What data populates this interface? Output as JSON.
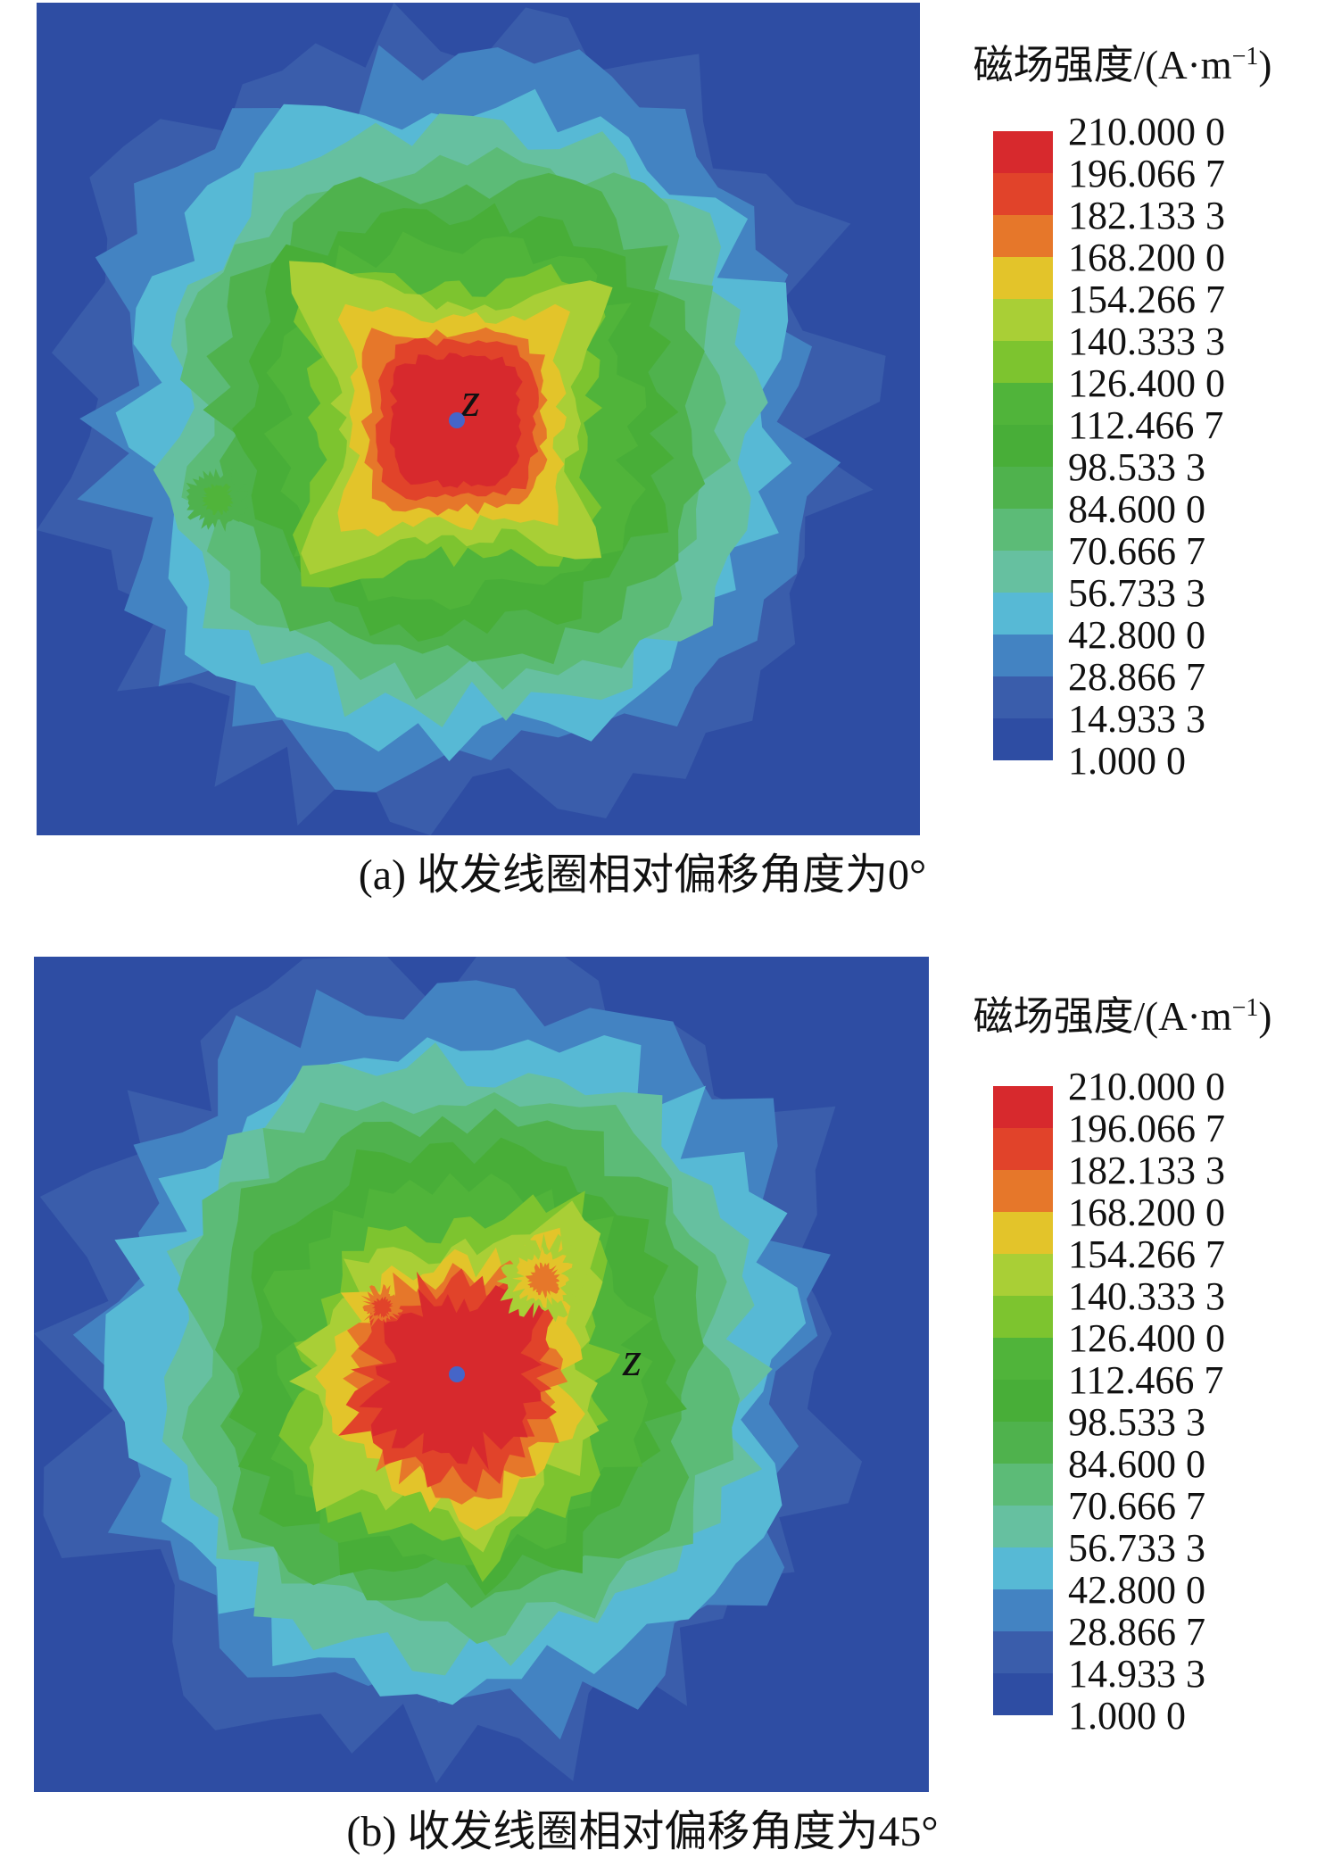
{
  "page": {
    "background": "#ffffff"
  },
  "legend": {
    "title_prefix": "磁场强度/(A·m",
    "title_sup": "−1",
    "title_suffix": ")",
    "values": [
      "210.000 0",
      "196.066 7",
      "182.133 3",
      "168.200 0",
      "154.266 7",
      "140.333 3",
      "126.400 0",
      "112.466 7",
      "98.533 3",
      "84.600 0",
      "70.666 7",
      "56.733 3",
      "42.800 0",
      "28.866 7",
      "14.933 3",
      "1.000 0"
    ],
    "colors": [
      "#d7292d",
      "#e1432a",
      "#e6772a",
      "#e3c42a",
      "#a9cf36",
      "#7dc42f",
      "#50b43a",
      "#48ae38",
      "#4fb24d",
      "#5cbb77",
      "#66c0a0",
      "#57b9d5",
      "#4383c2",
      "#3a5dab",
      "#2e4da3"
    ]
  },
  "markers": {
    "dot_color": "#4565c8"
  },
  "chart_data": [
    {
      "type": "contour",
      "caption": "(a) 收发线圈相对偏移角度为0°",
      "colorbar_title": "磁场强度/(A·m⁻¹)",
      "unit": "A·m⁻¹",
      "levels_high_to_low": [
        210.0,
        196.0667,
        182.1333,
        168.2,
        154.2667,
        140.3333,
        126.4,
        112.4667,
        98.5333,
        84.6,
        70.6667,
        56.7333,
        42.8,
        28.8667,
        14.9333,
        1.0
      ],
      "palette_high_to_low": [
        "#d7292d",
        "#e1432a",
        "#e6772a",
        "#e3c42a",
        "#a9cf36",
        "#7dc42f",
        "#50b43a",
        "#48ae38",
        "#4fb24d",
        "#5cbb77",
        "#66c0a0",
        "#57b9d5",
        "#4383c2",
        "#3a5dab",
        "#2e4da3"
      ],
      "peak_marker": {
        "label": "z",
        "relative_x": 0.476,
        "relative_y": 0.5
      },
      "marker_label_relative": {
        "x": 0.49,
        "y": 0.475
      },
      "peak_band": [
        196.0667,
        210.0
      ],
      "background_band": [
        1.0,
        14.9333
      ]
    },
    {
      "type": "contour",
      "caption": "(b) 收发线圈相对偏移角度为45°",
      "colorbar_title": "磁场强度/(A·m⁻¹)",
      "unit": "A·m⁻¹",
      "levels_high_to_low": [
        210.0,
        196.0667,
        182.1333,
        168.2,
        154.2667,
        140.3333,
        126.4,
        112.4667,
        98.5333,
        84.6,
        70.6667,
        56.7333,
        42.8,
        28.8667,
        14.9333,
        1.0
      ],
      "palette_high_to_low": [
        "#d7292d",
        "#e1432a",
        "#e6772a",
        "#e3c42a",
        "#a9cf36",
        "#7dc42f",
        "#50b43a",
        "#48ae38",
        "#4fb24d",
        "#5cbb77",
        "#66c0a0",
        "#57b9d5",
        "#4383c2",
        "#3a5dab",
        "#2e4da3"
      ],
      "peak_marker": {
        "label": "z",
        "relative_x": 0.473,
        "relative_y": 0.5
      },
      "marker_label_relative": {
        "x": 0.67,
        "y": 0.482
      },
      "peak_band": [
        196.0667,
        210.0
      ],
      "background_band": [
        1.0,
        14.9333
      ]
    }
  ]
}
